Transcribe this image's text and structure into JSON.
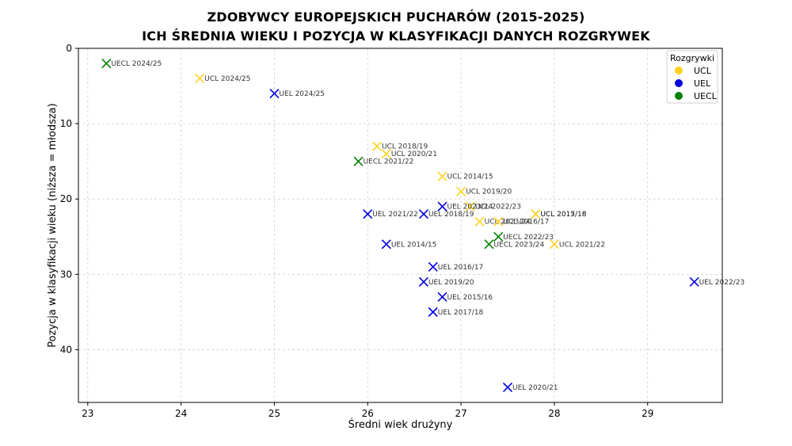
{
  "chart_data": {
    "type": "scatter",
    "title": "ZDOBYWCY EUROPEJSKICH PUCHARÓW (2015-2025)",
    "subtitle": "ICH ŚREDNIA WIEKU I POZYCJA W KLASYFIKACJI DANYCH ROZGRYWEK",
    "xlabel": "Średni wiek drużyny",
    "ylabel": "Pozycja w klasyfikacji wieku (niższa = młodsza)",
    "xlim": [
      22.9,
      29.8
    ],
    "ylim": [
      47,
      0
    ],
    "y_inverted": true,
    "grid": true,
    "x_ticks": [
      "23",
      "24",
      "25",
      "26",
      "27",
      "28",
      "29"
    ],
    "y_ticks": [
      "0",
      "10",
      "20",
      "30",
      "40"
    ],
    "legend": {
      "title": "Rozgrywki",
      "position": "top-right"
    },
    "series": [
      {
        "name": "UCL",
        "color": "#ffd21f",
        "points": [
          {
            "label": "UCL 2024/25",
            "x": 24.2,
            "y": 4
          },
          {
            "label": "UCL 2018/19",
            "x": 26.1,
            "y": 13
          },
          {
            "label": "UCL 2020/21",
            "x": 26.2,
            "y": 14
          },
          {
            "label": "UCL 2014/15",
            "x": 26.8,
            "y": 17
          },
          {
            "label": "UCL 2019/20",
            "x": 27.0,
            "y": 19
          },
          {
            "label": "UCL 2022/23",
            "x": 27.1,
            "y": 21
          },
          {
            "label": "UCL 2023/24",
            "x": 27.2,
            "y": 23
          },
          {
            "label": "UCL 2016/17",
            "x": 27.4,
            "y": 23
          },
          {
            "label": "UCL 2015/16",
            "x": 27.8,
            "y": 22
          },
          {
            "label": "UCL 2017/18",
            "x": 27.8,
            "y": 22
          },
          {
            "label": "UCL 2021/22",
            "x": 28.0,
            "y": 26
          }
        ]
      },
      {
        "name": "UEL",
        "color": "#0000e0",
        "points": [
          {
            "label": "UEL 2024/25",
            "x": 25.0,
            "y": 6
          },
          {
            "label": "UEL 2023/24",
            "x": 26.8,
            "y": 21
          },
          {
            "label": "UEL 2021/22",
            "x": 26.0,
            "y": 22
          },
          {
            "label": "UEL 2018/19",
            "x": 26.6,
            "y": 22
          },
          {
            "label": "UEL 2014/15",
            "x": 26.2,
            "y": 26
          },
          {
            "label": "UEL 2016/17",
            "x": 26.7,
            "y": 29
          },
          {
            "label": "UEL 2019/20",
            "x": 26.6,
            "y": 31
          },
          {
            "label": "UEL 2015/16",
            "x": 26.8,
            "y": 33
          },
          {
            "label": "UEL 2017/18",
            "x": 26.7,
            "y": 35
          },
          {
            "label": "UEL 2020/21",
            "x": 27.5,
            "y": 45
          },
          {
            "label": "UEL 2022/23",
            "x": 29.5,
            "y": 31
          }
        ]
      },
      {
        "name": "UECL",
        "color": "#008000",
        "points": [
          {
            "label": "UECL 2024/25",
            "x": 23.2,
            "y": 2
          },
          {
            "label": "UECL 2021/22",
            "x": 25.9,
            "y": 15
          },
          {
            "label": "UECL 2022/23",
            "x": 27.4,
            "y": 25
          },
          {
            "label": "UECL 2023/24",
            "x": 27.3,
            "y": 26
          }
        ]
      }
    ]
  }
}
